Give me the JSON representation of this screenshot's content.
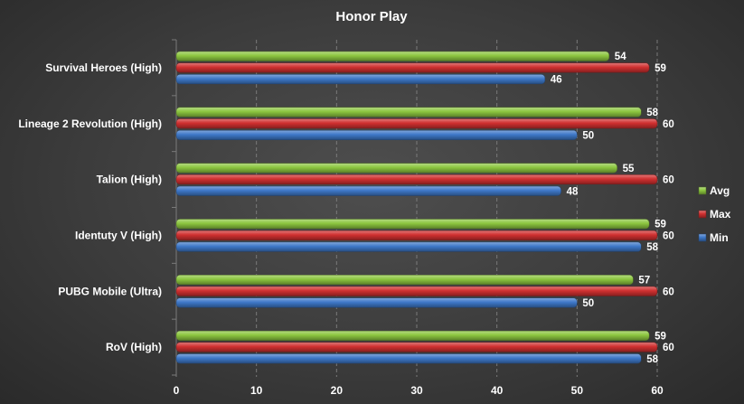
{
  "chart_data": {
    "type": "bar",
    "orientation": "horizontal",
    "title": "Honor Play",
    "categories": [
      "Survival Heroes (High)",
      "Lineage 2 Revolution (High)",
      "Talion (High)",
      "Identuty V (High)",
      "PUBG Mobile (Ultra)",
      "RoV (High)"
    ],
    "series": [
      {
        "name": "Avg",
        "color": "#8cc63f",
        "values": [
          54,
          58,
          55,
          59,
          57,
          59
        ]
      },
      {
        "name": "Max",
        "color": "#d03030",
        "values": [
          59,
          60,
          60,
          60,
          60,
          60
        ]
      },
      {
        "name": "Min",
        "color": "#3e78c8",
        "values": [
          46,
          50,
          48,
          58,
          50,
          58
        ]
      }
    ],
    "xlim": [
      0,
      60
    ],
    "xticks": [
      "0",
      "10",
      "20",
      "30",
      "40",
      "50",
      "60"
    ],
    "grid": true,
    "legend_position": "right"
  }
}
